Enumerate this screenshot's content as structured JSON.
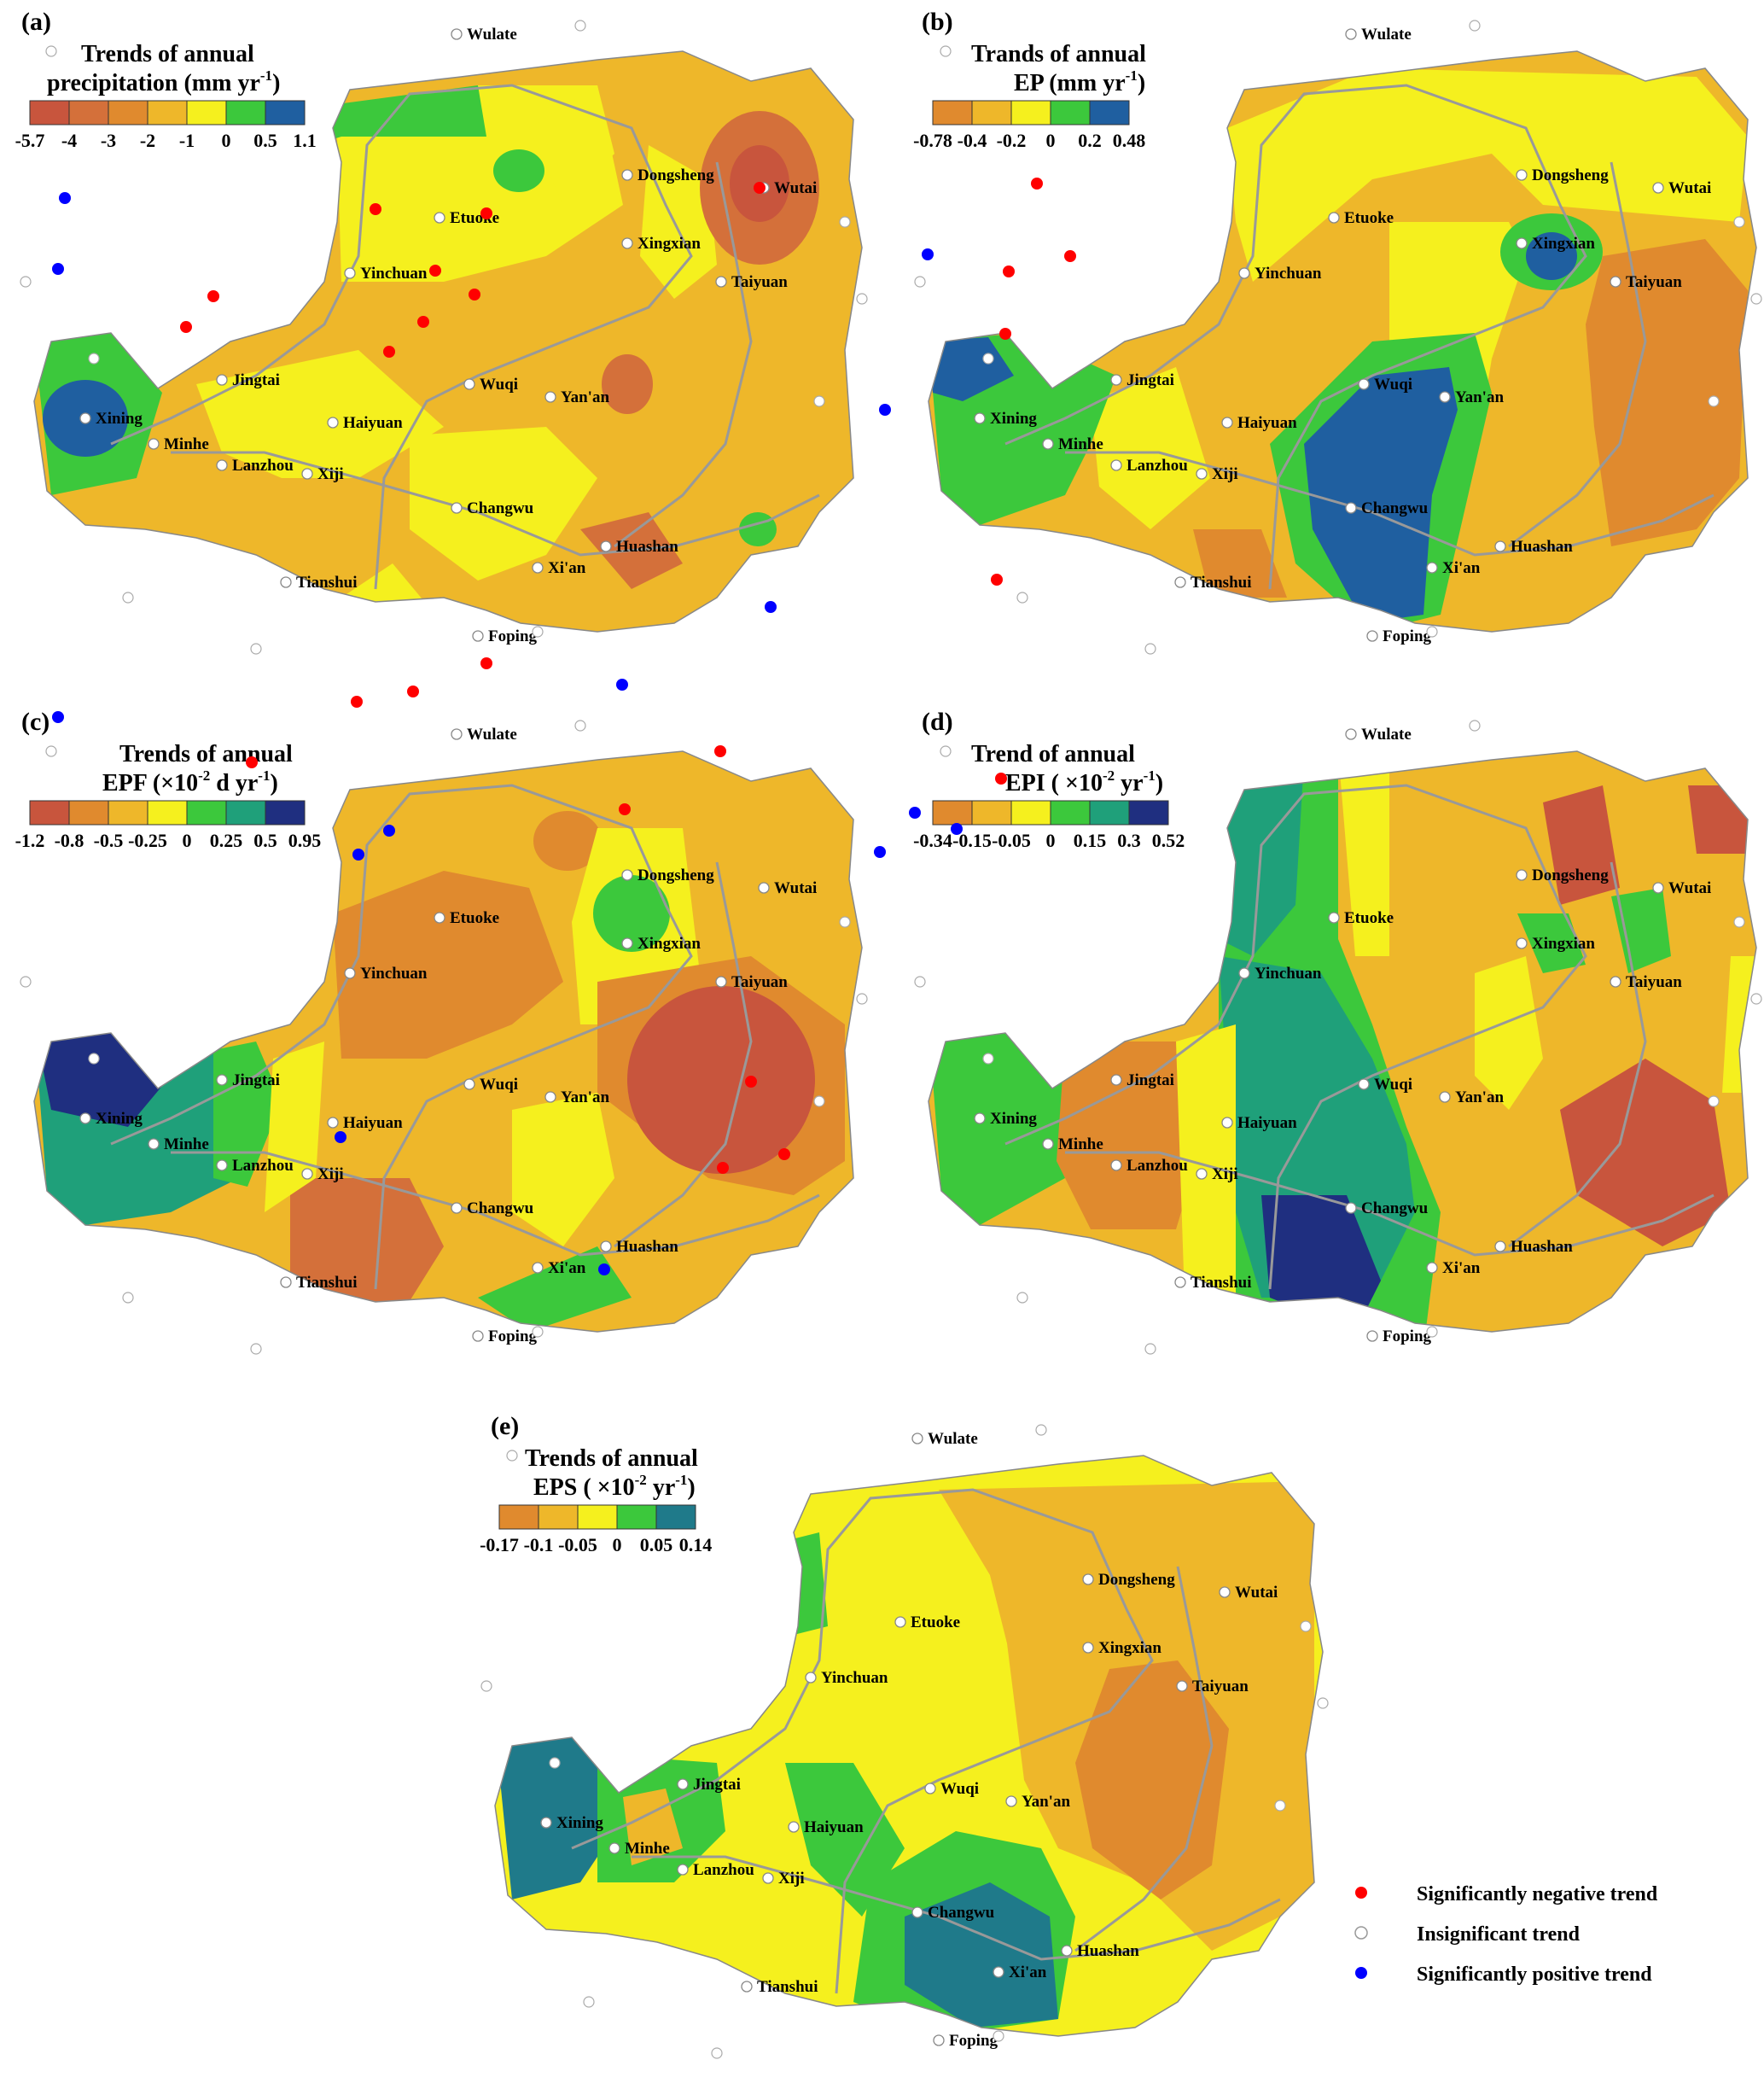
{
  "cities": [
    "Wulate",
    "Dongsheng",
    "Wutai",
    "Etuoke",
    "Xingxian",
    "Yinchuan",
    "Taiyuan",
    "Jingtai",
    "Wuqi",
    "Yan'an",
    "Xining",
    "Minhe",
    "Haiyuan",
    "Lanzhou",
    "Xiji",
    "Changwu",
    "Huashan",
    "Xi'an",
    "Tianshui",
    "Foping"
  ],
  "panels": [
    {
      "label": "(a)",
      "title1": "Trends of annual",
      "title2_pre": "precipitation (mm yr",
      "title2_sup": "-1",
      "title2_post": ")",
      "ticks": [
        "-5.7",
        "-4",
        "-3",
        "-2",
        "-1",
        "0",
        "0.5",
        "1.1"
      ],
      "colors": [
        "#c8553d",
        "#d4703a",
        "#e08a2e",
        "#eeb72a",
        "#f5f01e",
        "#3cc83c",
        "#1f5fa0"
      ],
      "bg": "#eeb72a"
    },
    {
      "label": "(b)",
      "title1": "Trands of annual",
      "title2_pre": "EP (mm  yr",
      "title2_sup": "-1",
      "title2_post": ")",
      "ticks": [
        "-0.78",
        "-0.4",
        "-0.2",
        "0",
        "0.2",
        "0.48"
      ],
      "colors": [
        "#e08a2e",
        "#eeb72a",
        "#f5f01e",
        "#3cc83c",
        "#1f5fa0"
      ],
      "bg": "#eeb72a"
    },
    {
      "label": "(c)",
      "title1": "Trends of annual",
      "title2_pre": "EPF (×10",
      "title2_sup": "-2",
      "title2_post": " d yr",
      "title2_sup2": "-1",
      "title2_post2": ")",
      "ticks": [
        "-1.2",
        "-0.8",
        "-0.5",
        "-0.25",
        "0",
        "0.25",
        "0.5",
        "0.95"
      ],
      "colors": [
        "#c8553d",
        "#e08a2e",
        "#eeb72a",
        "#f5f01e",
        "#3cc83c",
        "#1fa07a",
        "#1f2f80"
      ],
      "bg": "#eeb72a"
    },
    {
      "label": "(d)",
      "title1": "Trend of annual",
      "title2_pre": "EPI ( ×10",
      "title2_sup": "-2",
      "title2_post": " yr",
      "title2_sup2": "-1",
      "title2_post2": ")",
      "ticks": [
        "-0.34",
        "-0.15",
        "-0.05",
        "0",
        "0.15",
        "0.3",
        "0.52"
      ],
      "colors": [
        "#e08a2e",
        "#eeb72a",
        "#f5f01e",
        "#3cc83c",
        "#1fa07a",
        "#1f2f80"
      ],
      "bg": "#eeb72a"
    },
    {
      "label": "(e)",
      "title1": "Trends of annual",
      "title2_pre": "EPS ( ×10",
      "title2_sup": "-2",
      "title2_post": " yr",
      "title2_sup2": "-1",
      "title2_post2": ")",
      "ticks": [
        "-0.17",
        "-0.1",
        "-0.05",
        "0",
        "0.05",
        "0.14"
      ],
      "colors": [
        "#e08a2e",
        "#eeb72a",
        "#f5f01e",
        "#3cc83c",
        "#1f7a8a"
      ],
      "bg": "#f5f01e"
    }
  ],
  "legend": {
    "negative": "Significantly negative trend",
    "insignificant": "Insignificant trend",
    "positive": "Significantly positive trend",
    "negative_color": "#ff0000",
    "positive_color": "#0000ff"
  }
}
